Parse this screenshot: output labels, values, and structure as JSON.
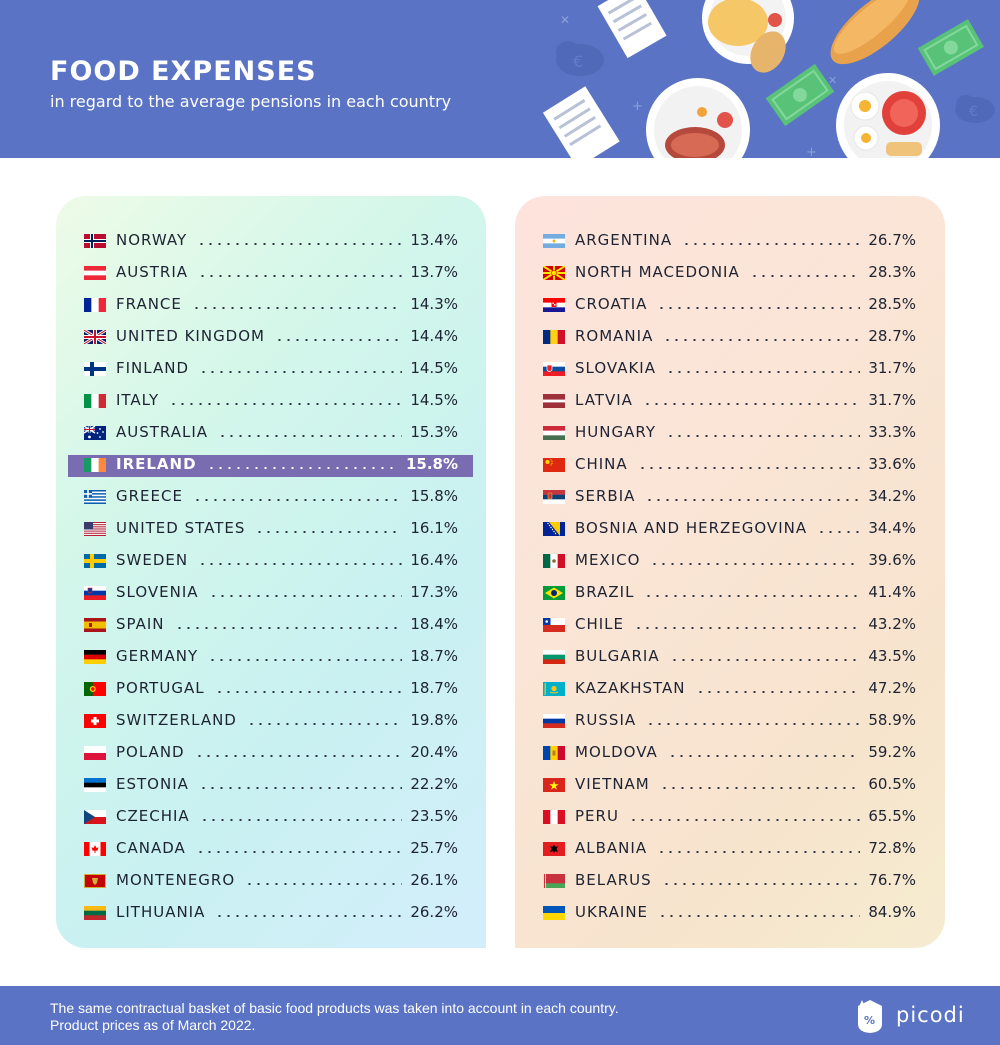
{
  "header": {
    "title": "FOOD EXPENSES",
    "subtitle": "in regard to the average pensions in each country"
  },
  "footer": {
    "note_line1": "The same contractual basket of basic food products was taken into account in each country.",
    "note_line2": "Product prices as of March 2022.",
    "brand": "picodi"
  },
  "colors": {
    "header_bg": "#5a73c4",
    "highlight_bg": "#7a6cb0"
  },
  "chart_data": {
    "type": "table",
    "title": "FOOD EXPENSES",
    "subtitle": "in regard to the average pensions in each country",
    "highlighted": "IRELAND",
    "columns": [
      {
        "panel": "left",
        "rows": [
          {
            "country": "NORWAY",
            "value": "13.4%",
            "flag": "norway"
          },
          {
            "country": "AUSTRIA",
            "value": "13.7%",
            "flag": "austria"
          },
          {
            "country": "FRANCE",
            "value": "14.3%",
            "flag": "france"
          },
          {
            "country": "UNITED KINGDOM",
            "value": "14.4%",
            "flag": "uk"
          },
          {
            "country": "FINLAND",
            "value": "14.5%",
            "flag": "finland"
          },
          {
            "country": "ITALY",
            "value": "14.5%",
            "flag": "italy"
          },
          {
            "country": "AUSTRALIA",
            "value": "15.3%",
            "flag": "australia"
          },
          {
            "country": "IRELAND",
            "value": "15.8%",
            "flag": "ireland"
          },
          {
            "country": "GREECE",
            "value": "15.8%",
            "flag": "greece"
          },
          {
            "country": "UNITED STATES",
            "value": "16.1%",
            "flag": "usa"
          },
          {
            "country": "SWEDEN",
            "value": "16.4%",
            "flag": "sweden"
          },
          {
            "country": "SLOVENIA",
            "value": "17.3%",
            "flag": "slovenia"
          },
          {
            "country": "SPAIN",
            "value": "18.4%",
            "flag": "spain"
          },
          {
            "country": "GERMANY",
            "value": "18.7%",
            "flag": "germany"
          },
          {
            "country": "PORTUGAL",
            "value": "18.7%",
            "flag": "portugal"
          },
          {
            "country": "SWITZERLAND",
            "value": "19.8%",
            "flag": "switzerland"
          },
          {
            "country": "POLAND",
            "value": "20.4%",
            "flag": "poland"
          },
          {
            "country": "ESTONIA",
            "value": "22.2%",
            "flag": "estonia"
          },
          {
            "country": "CZECHIA",
            "value": "23.5%",
            "flag": "czechia"
          },
          {
            "country": "CANADA",
            "value": "25.7%",
            "flag": "canada"
          },
          {
            "country": "MONTENEGRO",
            "value": "26.1%",
            "flag": "montenegro"
          },
          {
            "country": "LITHUANIA",
            "value": "26.2%",
            "flag": "lithuania"
          }
        ]
      },
      {
        "panel": "right",
        "rows": [
          {
            "country": "ARGENTINA",
            "value": "26.7%",
            "flag": "argentina"
          },
          {
            "country": "NORTH MACEDONIA",
            "value": "28.3%",
            "flag": "north-macedonia"
          },
          {
            "country": "CROATIA",
            "value": "28.5%",
            "flag": "croatia"
          },
          {
            "country": "ROMANIA",
            "value": "28.7%",
            "flag": "romania"
          },
          {
            "country": "SLOVAKIA",
            "value": "31.7%",
            "flag": "slovakia"
          },
          {
            "country": "LATVIA",
            "value": "31.7%",
            "flag": "latvia"
          },
          {
            "country": "HUNGARY",
            "value": "33.3%",
            "flag": "hungary"
          },
          {
            "country": "CHINA",
            "value": "33.6%",
            "flag": "china"
          },
          {
            "country": "SERBIA",
            "value": "34.2%",
            "flag": "serbia"
          },
          {
            "country": "BOSNIA AND HERZEGOVINA",
            "value": "34.4%",
            "flag": "bosnia"
          },
          {
            "country": "MEXICO",
            "value": "39.6%",
            "flag": "mexico"
          },
          {
            "country": "BRAZIL",
            "value": "41.4%",
            "flag": "brazil"
          },
          {
            "country": "CHILE",
            "value": "43.2%",
            "flag": "chile"
          },
          {
            "country": "BULGARIA",
            "value": "43.5%",
            "flag": "bulgaria"
          },
          {
            "country": "KAZAKHSTAN",
            "value": "47.2%",
            "flag": "kazakhstan"
          },
          {
            "country": "RUSSIA",
            "value": "58.9%",
            "flag": "russia"
          },
          {
            "country": "MOLDOVA",
            "value": "59.2%",
            "flag": "moldova"
          },
          {
            "country": "VIETNAM",
            "value": "60.5%",
            "flag": "vietnam"
          },
          {
            "country": "PERU",
            "value": "65.5%",
            "flag": "peru"
          },
          {
            "country": "ALBANIA",
            "value": "72.8%",
            "flag": "albania"
          },
          {
            "country": "BELARUS",
            "value": "76.7%",
            "flag": "belarus"
          },
          {
            "country": "UKRAINE",
            "value": "84.9%",
            "flag": "ukraine"
          }
        ]
      }
    ]
  }
}
